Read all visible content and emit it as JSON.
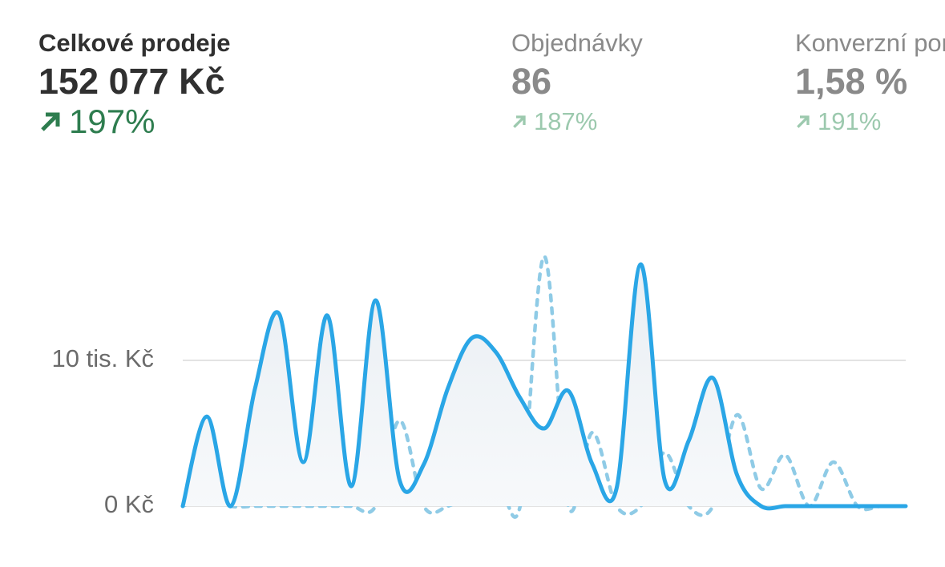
{
  "metrics": [
    {
      "label": "Celkové prodeje",
      "value": "152 077 Kč",
      "change": "197%"
    },
    {
      "label": "Objednávky",
      "value": "86",
      "change": "187%"
    },
    {
      "label": "Konverzní poměr",
      "value": "1,58 %",
      "change": "191%"
    }
  ],
  "chart_data": {
    "type": "line",
    "categories": [
      null,
      null,
      null,
      null,
      null,
      null,
      null,
      null,
      null,
      null,
      null,
      null,
      null,
      null,
      null,
      null,
      null,
      null,
      null,
      null,
      null,
      null,
      null,
      null,
      null,
      null,
      null,
      null,
      null,
      null,
      null
    ],
    "series": [
      {
        "color": "#2aa6e6",
        "values": [
          0,
          6150,
          0,
          8080,
          13190,
          3020,
          13080,
          1370,
          14120,
          1760,
          2860,
          8080,
          11540,
          10550,
          7420,
          5330,
          7910,
          2860,
          1210,
          16590,
          1760,
          4510,
          8790,
          2140,
          0,
          0,
          0,
          0,
          0,
          0,
          0
        ]
      },
      {
        "color": "#8fcbe6",
        "values": [
          0,
          660,
          0,
          0,
          0,
          0,
          0,
          0,
          0,
          5880,
          0,
          0,
          1000,
          2200,
          0,
          17140,
          0,
          5050,
          0,
          0,
          3680,
          0,
          0,
          6260,
          1200,
          3520,
          0,
          3020,
          0,
          0,
          0
        ]
      }
    ],
    "ylim": [
      0,
      17500
    ],
    "yticks": [
      {
        "value": 0,
        "label": "0 Kč"
      },
      {
        "value": 10000,
        "label": "10 tis. Kč"
      }
    ],
    "grid": true
  }
}
